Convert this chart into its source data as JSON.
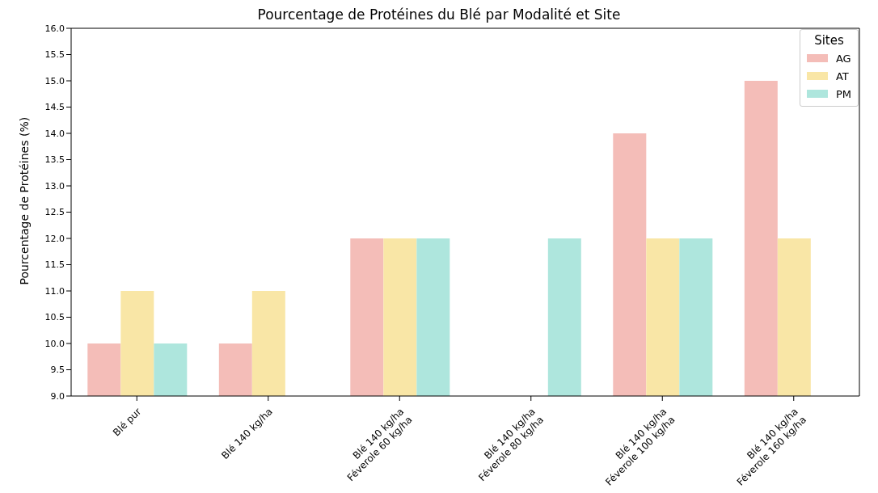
{
  "chart_data": {
    "type": "bar",
    "title": "Pourcentage de Protéines du Blé par Modalité et Site",
    "ylabel": "Pourcentage de Protéines (%)",
    "legend_title": "Sites",
    "categories": [
      "Blé pur",
      "Blé 140 kg/ha",
      "Blé 140 kg/ha\nFéverole 60 kg/ha",
      "Blé 140 kg/ha\nFéverole 80 kg/ha",
      "Blé 140 kg/ha\nFéverole 100 kg/ha",
      "Blé 140 kg/ha\nFéverole 160 kg/ha"
    ],
    "series": [
      {
        "name": "AG",
        "color": "#f4bdb8",
        "values": [
          10,
          10,
          12,
          null,
          14,
          15
        ]
      },
      {
        "name": "AT",
        "color": "#f9e6a6",
        "values": [
          11,
          11,
          12,
          null,
          12,
          12
        ]
      },
      {
        "name": "PM",
        "color": "#aee6dd",
        "values": [
          10,
          null,
          12,
          12,
          12,
          null
        ]
      }
    ],
    "ylim": [
      9,
      16
    ],
    "yticks": [
      {
        "value": 9,
        "label": "9.0"
      },
      9.5,
      {
        "value": 10,
        "label": "10.0"
      },
      10.5,
      {
        "value": 11,
        "label": "11.0"
      },
      11.5,
      {
        "value": 12,
        "label": "12.0"
      },
      12.5,
      {
        "value": 13,
        "label": "13.0"
      },
      13.5,
      {
        "value": 14,
        "label": "14.0"
      },
      14.5,
      {
        "value": 15,
        "label": "15.0"
      },
      15.5,
      {
        "value": 16,
        "label": "16.0"
      }
    ],
    "grid": false,
    "legend": "top right"
  }
}
